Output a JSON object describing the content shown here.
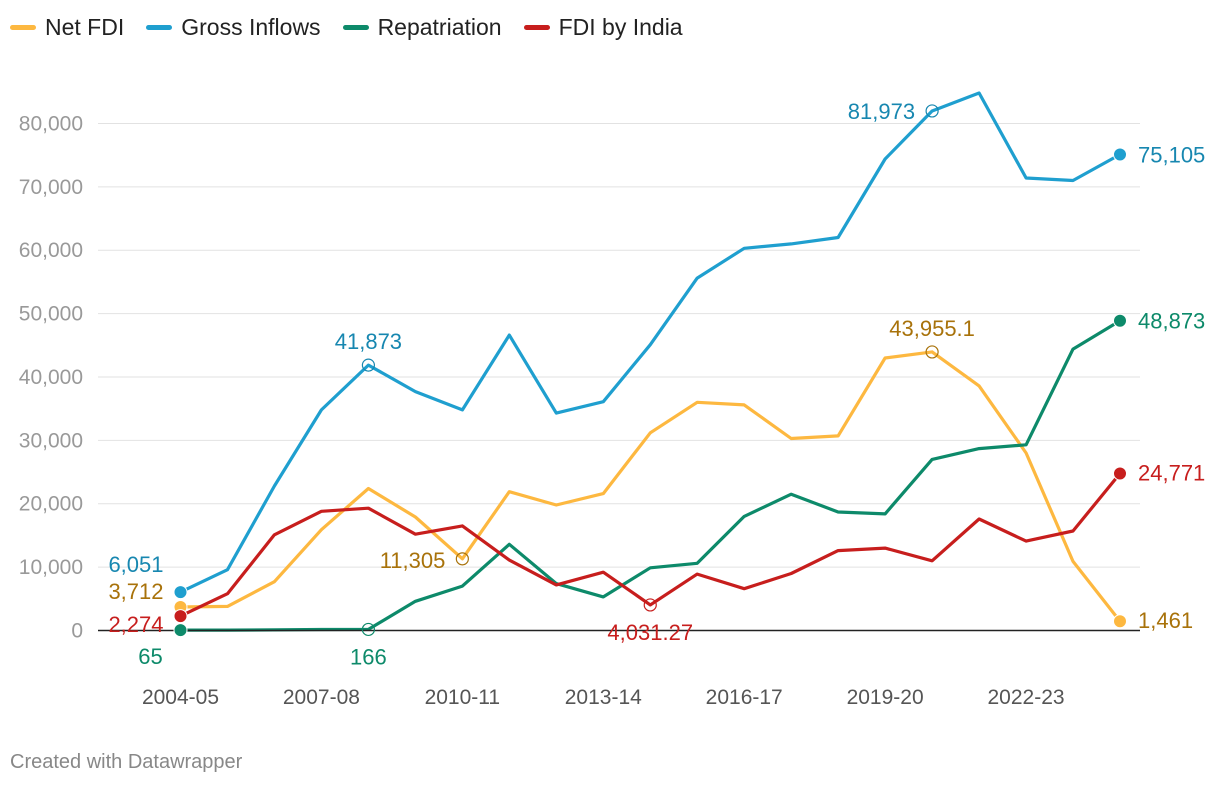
{
  "footer": "Created with Datawrapper",
  "chart_data": {
    "type": "line",
    "x": [
      "2004-05",
      "2005-06",
      "2006-07",
      "2007-08",
      "2008-09",
      "2009-10",
      "2010-11",
      "2011-12",
      "2012-13",
      "2013-14",
      "2014-15",
      "2015-16",
      "2016-17",
      "2017-18",
      "2018-19",
      "2019-20",
      "2020-21",
      "2021-22",
      "2022-23",
      "2023-24",
      "2024-25"
    ],
    "x_tick_labels": [
      "2004-05",
      "2007-08",
      "2010-11",
      "2013-14",
      "2016-17",
      "2019-20",
      "2022-23"
    ],
    "y_ticks": [
      0,
      10000,
      20000,
      30000,
      40000,
      50000,
      60000,
      70000,
      80000
    ],
    "y_tick_labels": [
      "0",
      "10,000",
      "20,000",
      "30,000",
      "40,000",
      "50,000",
      "60,000",
      "70,000",
      "80,000"
    ],
    "ylim": [
      0,
      88000
    ],
    "grid": true,
    "legend_position": "top-left",
    "series": [
      {
        "name": "Net FDI",
        "color": "#fdb840",
        "label_color": "#a8720a",
        "values": [
          3712,
          3800,
          7700,
          15900,
          22400,
          17900,
          11305,
          21900,
          19800,
          21600,
          31200,
          36000,
          35600,
          30300,
          30700,
          43000,
          43955.1,
          38600,
          28000,
          10900,
          1461
        ]
      },
      {
        "name": "Gross Inflows",
        "color": "#1f9fcf",
        "label_color": "#1787b0",
        "values": [
          6051,
          9600,
          22800,
          34800,
          41873,
          37700,
          34800,
          46600,
          34300,
          36100,
          45100,
          55600,
          60300,
          61000,
          62000,
          74400,
          81973,
          84800,
          71400,
          71000,
          75105
        ]
      },
      {
        "name": "Repatriation",
        "color": "#0d8a6a",
        "label_color": "#0d8a6a",
        "values": [
          65,
          60,
          100,
          150,
          166,
          4600,
          7000,
          13600,
          7400,
          5300,
          9900,
          10600,
          18000,
          21500,
          18700,
          18400,
          27000,
          28700,
          29300,
          44400,
          48873
        ]
      },
      {
        "name": "FDI by India",
        "color": "#c71e1d",
        "label_color": "#c71e1d",
        "values": [
          2274,
          5800,
          15100,
          18800,
          19300,
          15200,
          16500,
          11100,
          7200,
          9200,
          4031.27,
          8900,
          6600,
          9000,
          12600,
          13000,
          11000,
          17600,
          14100,
          15700,
          24771
        ]
      }
    ],
    "annotations": [
      {
        "series": 0,
        "index": 0,
        "text": "3,712",
        "marker": "filled"
      },
      {
        "series": 0,
        "index": 6,
        "text": "11,305",
        "marker": "open"
      },
      {
        "series": 0,
        "index": 16,
        "text": "43,955.1",
        "marker": "open"
      },
      {
        "series": 0,
        "index": 20,
        "text": "1,461",
        "marker": "filled"
      },
      {
        "series": 1,
        "index": 0,
        "text": "6,051",
        "marker": "filled"
      },
      {
        "series": 1,
        "index": 4,
        "text": "41,873",
        "marker": "open"
      },
      {
        "series": 1,
        "index": 16,
        "text": "81,973",
        "marker": "open"
      },
      {
        "series": 1,
        "index": 20,
        "text": "75,105",
        "marker": "filled"
      },
      {
        "series": 2,
        "index": 0,
        "text": "65",
        "marker": "filled"
      },
      {
        "series": 2,
        "index": 4,
        "text": "166",
        "marker": "open"
      },
      {
        "series": 2,
        "index": 20,
        "text": "48,873",
        "marker": "filled"
      },
      {
        "series": 3,
        "index": 0,
        "text": "2,274",
        "marker": "filled"
      },
      {
        "series": 3,
        "index": 10,
        "text": "4,031.27",
        "marker": "open"
      },
      {
        "series": 3,
        "index": 20,
        "text": "24,771",
        "marker": "filled"
      }
    ]
  }
}
